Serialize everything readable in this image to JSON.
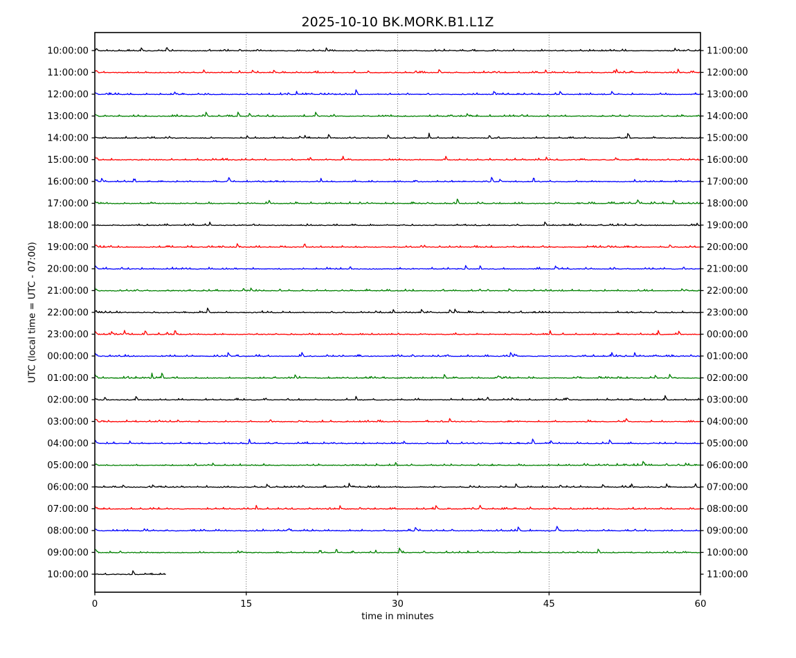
{
  "chart_data": {
    "type": "line",
    "subtype": "seismic-helicorder-dayplot",
    "title": "2025-10-10 BK.MORK.B1.L1Z",
    "date": "2025-10-10",
    "station_code": "BK.MORK.B1.L1Z",
    "xlabel": "time in minutes",
    "ylabel": "UTC (local time = UTC - 07:00)",
    "utc_offset_note": "local time = UTC - 07:00",
    "xlim": [
      0,
      60
    ],
    "x_ticks": [
      0,
      15,
      30,
      45,
      60
    ],
    "minutes_per_row": 60,
    "grid": {
      "vertical_dotted_minutes": [
        15,
        30,
        45
      ],
      "grid_color": "#4a4a4a"
    },
    "color_cycle": [
      "#000000",
      "#ff0000",
      "#0000ff",
      "#008000"
    ],
    "signal_description": "low-amplitude background noise with small upward transient spikes on every trace; no large events; final trace contains only ~7 minutes of data",
    "rows": [
      {
        "left_label": "10:00:00",
        "right_label": "11:00:00",
        "color": "#000000",
        "duration_minutes": 60
      },
      {
        "left_label": "11:00:00",
        "right_label": "12:00:00",
        "color": "#ff0000",
        "duration_minutes": 60
      },
      {
        "left_label": "12:00:00",
        "right_label": "13:00:00",
        "color": "#0000ff",
        "duration_minutes": 60
      },
      {
        "left_label": "13:00:00",
        "right_label": "14:00:00",
        "color": "#008000",
        "duration_minutes": 60
      },
      {
        "left_label": "14:00:00",
        "right_label": "15:00:00",
        "color": "#000000",
        "duration_minutes": 60
      },
      {
        "left_label": "15:00:00",
        "right_label": "16:00:00",
        "color": "#ff0000",
        "duration_minutes": 60
      },
      {
        "left_label": "16:00:00",
        "right_label": "17:00:00",
        "color": "#0000ff",
        "duration_minutes": 60
      },
      {
        "left_label": "17:00:00",
        "right_label": "18:00:00",
        "color": "#008000",
        "duration_minutes": 60
      },
      {
        "left_label": "18:00:00",
        "right_label": "19:00:00",
        "color": "#000000",
        "duration_minutes": 60
      },
      {
        "left_label": "19:00:00",
        "right_label": "20:00:00",
        "color": "#ff0000",
        "duration_minutes": 60
      },
      {
        "left_label": "20:00:00",
        "right_label": "21:00:00",
        "color": "#0000ff",
        "duration_minutes": 60
      },
      {
        "left_label": "21:00:00",
        "right_label": "22:00:00",
        "color": "#008000",
        "duration_minutes": 60
      },
      {
        "left_label": "22:00:00",
        "right_label": "23:00:00",
        "color": "#000000",
        "duration_minutes": 60
      },
      {
        "left_label": "23:00:00",
        "right_label": "00:00:00",
        "color": "#ff0000",
        "duration_minutes": 60
      },
      {
        "left_label": "00:00:00",
        "right_label": "01:00:00",
        "color": "#0000ff",
        "duration_minutes": 60
      },
      {
        "left_label": "01:00:00",
        "right_label": "02:00:00",
        "color": "#008000",
        "duration_minutes": 60
      },
      {
        "left_label": "02:00:00",
        "right_label": "03:00:00",
        "color": "#000000",
        "duration_minutes": 60
      },
      {
        "left_label": "03:00:00",
        "right_label": "04:00:00",
        "color": "#ff0000",
        "duration_minutes": 60
      },
      {
        "left_label": "04:00:00",
        "right_label": "05:00:00",
        "color": "#0000ff",
        "duration_minutes": 60
      },
      {
        "left_label": "05:00:00",
        "right_label": "06:00:00",
        "color": "#008000",
        "duration_minutes": 60
      },
      {
        "left_label": "06:00:00",
        "right_label": "07:00:00",
        "color": "#000000",
        "duration_minutes": 60
      },
      {
        "left_label": "07:00:00",
        "right_label": "08:00:00",
        "color": "#ff0000",
        "duration_minutes": 60
      },
      {
        "left_label": "08:00:00",
        "right_label": "09:00:00",
        "color": "#0000ff",
        "duration_minutes": 60
      },
      {
        "left_label": "09:00:00",
        "right_label": "10:00:00",
        "color": "#008000",
        "duration_minutes": 60
      },
      {
        "left_label": "10:00:00",
        "right_label": "11:00:00",
        "color": "#000000",
        "duration_minutes": 7
      }
    ]
  }
}
